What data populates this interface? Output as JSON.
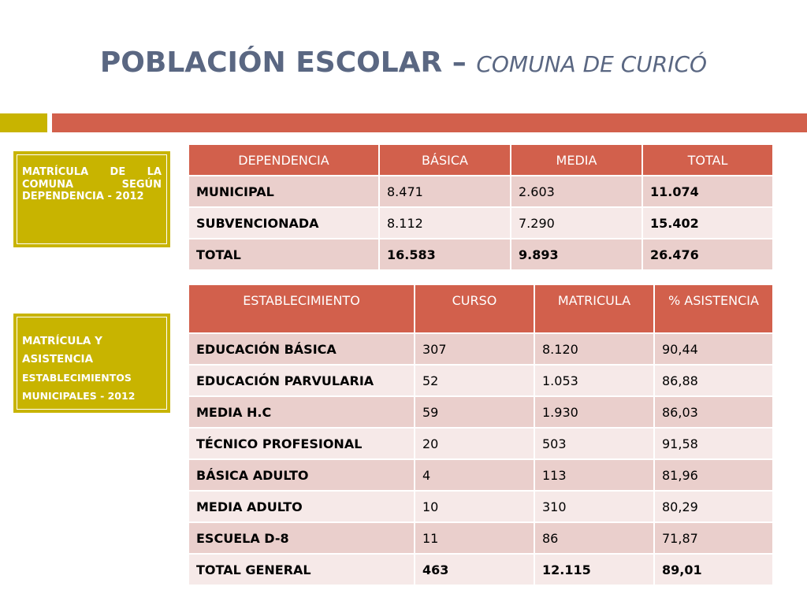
{
  "title": {
    "main": "POBLACIÓN ESCOLAR – ",
    "sub": "COMUNA DE CURICÓ"
  },
  "side_boxes": {
    "box1": "MATRÍCULA DE LA COMUNA SEGÚN DEPENDENCIA - 2012",
    "box2_line1": "MATRÍCULA Y",
    "box2_line2": "ASISTENCIA",
    "box2_line3": "ESTABLECIMIENTOS",
    "box2_line4": "MUNICIPALES - 2012"
  },
  "table1": {
    "headers": [
      "DEPENDENCIA",
      "BÁSICA",
      "MEDIA",
      "TOTAL"
    ],
    "rows": [
      [
        "MUNICIPAL",
        "8.471",
        "2.603",
        "11.074"
      ],
      [
        "SUBVENCIONADA",
        "8.112",
        "7.290",
        "15.402"
      ],
      [
        "TOTAL",
        "16.583",
        "9.893",
        "26.476"
      ]
    ]
  },
  "table2": {
    "headers": [
      "ESTABLECIMIENTO",
      "CURSO",
      "MATRICULA",
      "% ASISTENCIA"
    ],
    "rows": [
      [
        "EDUCACIÓN BÁSICA",
        "307",
        "8.120",
        "90,44"
      ],
      [
        "EDUCACIÓN PARVULARIA",
        "52",
        "1.053",
        "86,88"
      ],
      [
        "MEDIA H.C",
        "59",
        "1.930",
        "86,03"
      ],
      [
        "TÉCNICO PROFESIONAL",
        "20",
        "503",
        "91,58"
      ],
      [
        "BÁSICA ADULTO",
        "4",
        "113",
        "81,96"
      ],
      [
        "MEDIA ADULTO",
        "10",
        "310",
        "80,29"
      ],
      [
        "ESCUELA D-8",
        "11",
        "86",
        "71,87"
      ],
      [
        "TOTAL GENERAL",
        "463",
        "12.115",
        "89,01"
      ]
    ]
  },
  "colors": {
    "title": "#5a6782",
    "olive": "#c8b400",
    "header": "#d2604c",
    "row_odd": "#eacfcc",
    "row_even": "#f6e9e8"
  }
}
